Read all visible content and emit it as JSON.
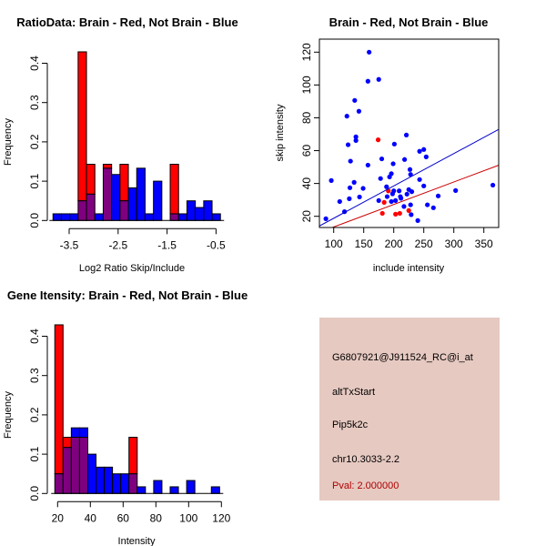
{
  "chart_data": [
    {
      "type": "histogram",
      "title": "RatioData: Brain - Red, Not Brain - Blue",
      "xlabel": "Log2 Ratio Skip/Include",
      "ylabel": "Frequency",
      "xticks": [
        -3.5,
        -2.5,
        -1.5,
        -0.5
      ],
      "xtick_labels": [
        "-3.5",
        "-2.5",
        "-1.5",
        "-0.5"
      ],
      "yticks": [
        0.0,
        0.1,
        0.2,
        0.3,
        0.4
      ],
      "ytick_labels": [
        "0.0",
        "0.1",
        "0.2",
        "0.3",
        "0.4"
      ],
      "bin_start": -3.83,
      "bin_width": 0.171,
      "series": [
        {
          "name": "Not Brain",
          "color": "#0000ff",
          "values": [
            0.017,
            0.017,
            0.017,
            0.05,
            0.067,
            0.017,
            0.133,
            0.117,
            0.05,
            0.083,
            0.133,
            0.017,
            0.1,
            0,
            0.017,
            0.017,
            0.05,
            0.033,
            0.05,
            0.017
          ]
        },
        {
          "name": "Brain",
          "color": "#ff0000",
          "values": [
            0,
            0,
            0,
            0.429,
            0.143,
            0,
            0.143,
            0,
            0.143,
            0,
            0,
            0,
            0,
            0,
            0.143,
            0,
            0,
            0,
            0,
            0
          ]
        }
      ],
      "overlap_color": "#7f007f"
    },
    {
      "type": "scatter",
      "title": "Brain - Red, Not Brain - Blue",
      "xlabel": "include intensity",
      "ylabel": "skip intensity",
      "xlim": [
        76,
        376
      ],
      "ylim": [
        13,
        126
      ],
      "xticks": [
        100,
        150,
        200,
        250,
        300,
        350
      ],
      "xtick_labels": [
        "100",
        "150",
        "200",
        "250",
        "300",
        "350"
      ],
      "yticks": [
        20,
        40,
        60,
        80,
        100,
        120
      ],
      "ytick_labels": [
        "20",
        "40",
        "60",
        "80",
        "100",
        "120"
      ],
      "series": [
        {
          "name": "Not Brain",
          "color": "#0000ff",
          "points": [
            [
              87,
              18.5
            ],
            [
              96,
              41.8
            ],
            [
              110,
              29
            ],
            [
              118,
              22.8
            ],
            [
              122,
              81
            ],
            [
              124,
              63.6
            ],
            [
              126,
              30.7
            ],
            [
              127,
              37.4
            ],
            [
              128,
              53.6
            ],
            [
              134,
              40.7
            ],
            [
              135,
              90.6
            ],
            [
              137,
              68.4
            ],
            [
              137,
              66.2
            ],
            [
              142,
              84
            ],
            [
              143,
              31.8
            ],
            [
              149,
              37
            ],
            [
              157,
              102.3
            ],
            [
              157,
              51.2
            ],
            [
              159,
              120
            ],
            [
              175,
              29.6
            ],
            [
              175,
              103.4
            ],
            [
              178,
              43
            ],
            [
              180,
              55
            ],
            [
              188,
              38
            ],
            [
              189,
              32
            ],
            [
              193,
              44
            ],
            [
              196,
              46
            ],
            [
              196,
              29
            ],
            [
              198,
              33.7
            ],
            [
              199,
              52
            ],
            [
              200,
              35.5
            ],
            [
              201,
              64
            ],
            [
              203,
              29.6
            ],
            [
              209,
              35.5
            ],
            [
              211,
              32
            ],
            [
              212,
              31
            ],
            [
              217,
              26
            ],
            [
              218,
              54.6
            ],
            [
              221,
              69.5
            ],
            [
              222,
              33.5
            ],
            [
              225,
              36.3
            ],
            [
              227,
              48.5
            ],
            [
              228,
              45.5
            ],
            [
              228,
              27
            ],
            [
              229,
              21
            ],
            [
              230,
              35
            ],
            [
              240,
              17.4
            ],
            [
              243,
              42.4
            ],
            [
              243,
              59.6
            ],
            [
              250,
              60.7
            ],
            [
              250,
              38.5
            ],
            [
              254,
              56.2
            ],
            [
              256,
              27
            ],
            [
              266,
              25.2
            ],
            [
              274,
              32.4
            ],
            [
              303,
              35.7
            ],
            [
              365,
              39
            ]
          ],
          "fit": {
            "slope": 0.197,
            "intercept": -0.9,
            "color": "#0000cc"
          }
        },
        {
          "name": "Brain",
          "color": "#ff0000",
          "points": [
            [
              174,
              66.6
            ],
            [
              181,
              21.8
            ],
            [
              184,
              28.5
            ],
            [
              191,
              35.5
            ],
            [
              203,
              21.3
            ],
            [
              210,
              21.8
            ],
            [
              225,
              23.5
            ]
          ],
          "fit": {
            "slope": 0.137,
            "intercept": -0.2,
            "color": "#cc0000"
          }
        }
      ]
    },
    {
      "type": "histogram",
      "title": "Gene Itensity: Brain - Red, Not Brain - Blue",
      "xlabel": "Intensity",
      "ylabel": "Frequency",
      "xticks": [
        20,
        40,
        60,
        80,
        100,
        120
      ],
      "xtick_labels": [
        "20",
        "40",
        "60",
        "80",
        "100",
        "120"
      ],
      "yticks": [
        0.0,
        0.1,
        0.2,
        0.3,
        0.4
      ],
      "ytick_labels": [
        "0.0",
        "0.1",
        "0.2",
        "0.3",
        "0.4"
      ],
      "bin_start": 18.3,
      "bin_width": 5.03,
      "series": [
        {
          "name": "Not Brain",
          "color": "#0000ff",
          "values": [
            0.05,
            0.117,
            0.167,
            0.167,
            0.1,
            0.067,
            0.067,
            0.05,
            0.05,
            0.05,
            0.017,
            0,
            0.033,
            0,
            0.017,
            0,
            0.033,
            0,
            0,
            0.017
          ]
        },
        {
          "name": "Brain",
          "color": "#ff0000",
          "values": [
            0.429,
            0.143,
            0.143,
            0.143,
            0,
            0,
            0,
            0,
            0,
            0.143,
            0,
            0,
            0,
            0,
            0,
            0,
            0,
            0,
            0,
            0
          ]
        }
      ],
      "overlap_color": "#7f007f"
    }
  ],
  "info_panel": {
    "background": "#e6c9c1",
    "probe_id": "G6807921@J911524_RC@i_at",
    "event_type": "altTxStart",
    "gene": "Pip5k2c",
    "location": "chr10.3033-2.2",
    "pval": "Pval: 2.000000",
    "pval_color": "#b00000"
  }
}
